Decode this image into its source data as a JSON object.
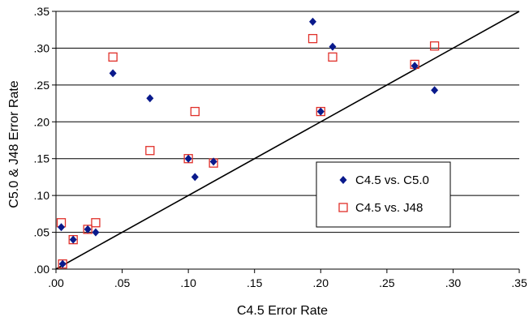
{
  "chart_data": {
    "type": "scatter",
    "title": "",
    "xlabel": "C4.5 Error Rate",
    "ylabel": "C5.0 & J48 Error Rate",
    "xlim": [
      0,
      0.35
    ],
    "ylim": [
      0,
      0.35
    ],
    "x_ticks": [
      ".00",
      ".05",
      ".10",
      ".15",
      ".20",
      ".25",
      ".30",
      ".35"
    ],
    "y_ticks": [
      ".00",
      ".05",
      ".10",
      ".15",
      ".20",
      ".25",
      ".30",
      ".35"
    ],
    "grid": "horizontal",
    "legend_position": "right",
    "reference_line": {
      "from": [
        0,
        0
      ],
      "to": [
        0.35,
        0.35
      ]
    },
    "colors": {
      "c50": "#0a1a8c",
      "j48": "#e0302a",
      "line": "#000000"
    },
    "series": [
      {
        "name": "C4.5 vs. C5.0",
        "marker": "diamond",
        "points": [
          [
            0.004,
            0.057
          ],
          [
            0.005,
            0.007
          ],
          [
            0.013,
            0.04
          ],
          [
            0.024,
            0.054
          ],
          [
            0.03,
            0.05
          ],
          [
            0.043,
            0.266
          ],
          [
            0.071,
            0.232
          ],
          [
            0.1,
            0.15
          ],
          [
            0.105,
            0.125
          ],
          [
            0.119,
            0.146
          ],
          [
            0.194,
            0.336
          ],
          [
            0.2,
            0.214
          ],
          [
            0.209,
            0.302
          ],
          [
            0.271,
            0.276
          ],
          [
            0.286,
            0.243
          ]
        ]
      },
      {
        "name": "C4.5 vs. J48",
        "marker": "square",
        "points": [
          [
            0.004,
            0.063
          ],
          [
            0.005,
            0.007
          ],
          [
            0.013,
            0.04
          ],
          [
            0.024,
            0.054
          ],
          [
            0.03,
            0.063
          ],
          [
            0.043,
            0.288
          ],
          [
            0.071,
            0.161
          ],
          [
            0.1,
            0.15
          ],
          [
            0.105,
            0.214
          ],
          [
            0.119,
            0.144
          ],
          [
            0.194,
            0.313
          ],
          [
            0.2,
            0.214
          ],
          [
            0.209,
            0.288
          ],
          [
            0.271,
            0.278
          ],
          [
            0.286,
            0.303
          ]
        ]
      }
    ]
  }
}
